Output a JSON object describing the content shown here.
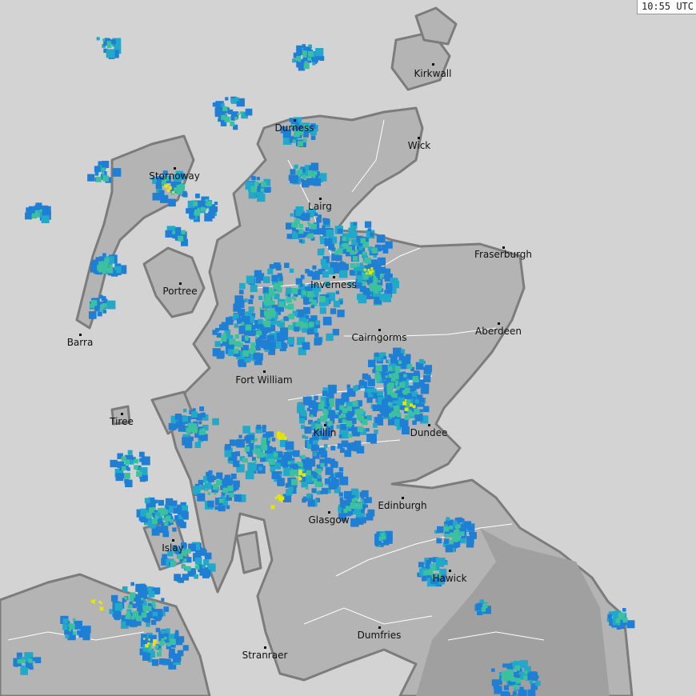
{
  "timestamp": "10:55 UTC",
  "colors": {
    "sea": "#d3d3d3",
    "land": "#b4b4b4",
    "land_dark": "#a0a0a0",
    "coast": "#7c7c7c",
    "border": "#ffffff",
    "rain_light": "#1f7fd4",
    "rain_moderate": "#22a8c8",
    "rain_heavy": "#3cc0a0",
    "rain_intense": "#e6e600"
  },
  "places": [
    {
      "name": "Kirkwall"
    },
    {
      "name": "Wick"
    },
    {
      "name": "Durness"
    },
    {
      "name": "Stornoway"
    },
    {
      "name": "Lairg"
    },
    {
      "name": "Fraserburgh"
    },
    {
      "name": "Inverness"
    },
    {
      "name": "Portree"
    },
    {
      "name": "Aberdeen"
    },
    {
      "name": "Barra"
    },
    {
      "name": "Cairngorms"
    },
    {
      "name": "Fort William"
    },
    {
      "name": "Tiree"
    },
    {
      "name": "Killin"
    },
    {
      "name": "Dundee"
    },
    {
      "name": "Edinburgh"
    },
    {
      "name": "Glasgow"
    },
    {
      "name": "Islay"
    },
    {
      "name": "Hawick"
    },
    {
      "name": "Dumfries"
    },
    {
      "name": "Stranraer"
    }
  ]
}
